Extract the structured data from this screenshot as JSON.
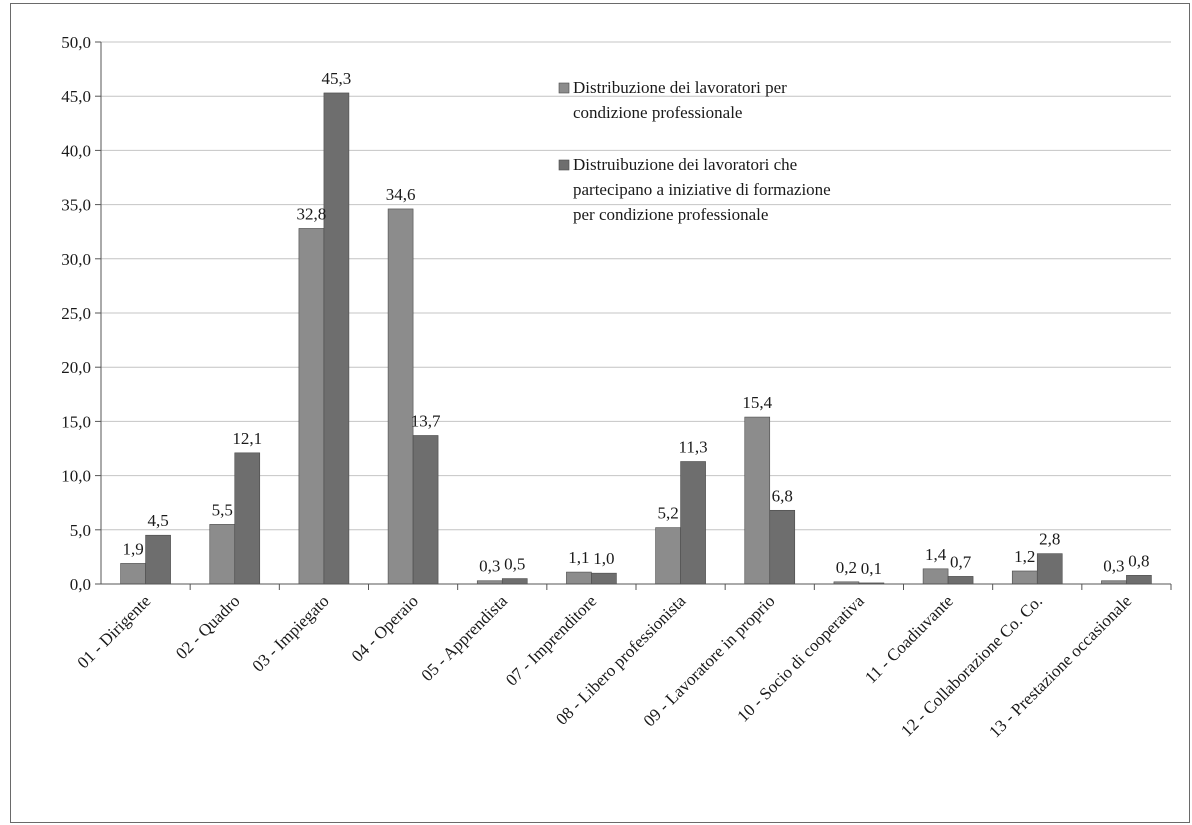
{
  "chart_data": {
    "type": "bar",
    "categories": [
      "01 - Dirigente",
      "02 - Quadro",
      "03 - Impiegato",
      "04 - Operaio",
      "05 - Apprendista",
      "07 - Imprenditore",
      "08 - Libero professionista",
      "09 - Lavoratore in proprio",
      "10 - Socio di cooperativa",
      "11 - Coadiuvante",
      "12 - Collaborazione Co. Co.",
      "13 - Prestazione occasionale"
    ],
    "series": [
      {
        "name": "Distribuzione dei lavoratori per condizione professionale",
        "name_lines": [
          "Distribuzione dei lavoratori per",
          "condizione professionale"
        ],
        "color": "#8c8c8c",
        "values": [
          1.9,
          5.5,
          32.8,
          34.6,
          0.3,
          1.1,
          5.2,
          15.4,
          0.2,
          1.4,
          1.2,
          0.3
        ],
        "labels": [
          "1,9",
          "5,5",
          "32,8",
          "34,6",
          "0,3",
          "1,1",
          "5,2",
          "15,4",
          "0,2",
          "1,4",
          "1,2",
          "0,3"
        ]
      },
      {
        "name": "Distruibuzione dei lavoratori che partecipano a iniziative di formazione per condizione professionale",
        "name_lines": [
          "Distruibuzione dei lavoratori che",
          "partecipano a iniziative di formazione",
          "per condizione professionale"
        ],
        "color": "#6e6e6e",
        "values": [
          4.5,
          12.1,
          45.3,
          13.7,
          0.5,
          1.0,
          11.3,
          6.8,
          0.1,
          0.7,
          2.8,
          0.8
        ],
        "labels": [
          "4,5",
          "12,1",
          "45,3",
          "13,7",
          "0,5",
          "1,0",
          "11,3",
          "6,8",
          "0,1",
          "0,7",
          "2,8",
          "0,8"
        ]
      }
    ],
    "ylim": [
      0,
      50
    ],
    "yticks": [
      0,
      5,
      10,
      15,
      20,
      25,
      30,
      35,
      40,
      45,
      50
    ],
    "ytick_labels": [
      "0,0",
      "5,0",
      "10,0",
      "15,0",
      "20,0",
      "25,0",
      "30,0",
      "35,0",
      "40,0",
      "45,0",
      "50,0"
    ],
    "grid": true,
    "legend_position": "top-right",
    "title": "",
    "xlabel": "",
    "ylabel": ""
  }
}
